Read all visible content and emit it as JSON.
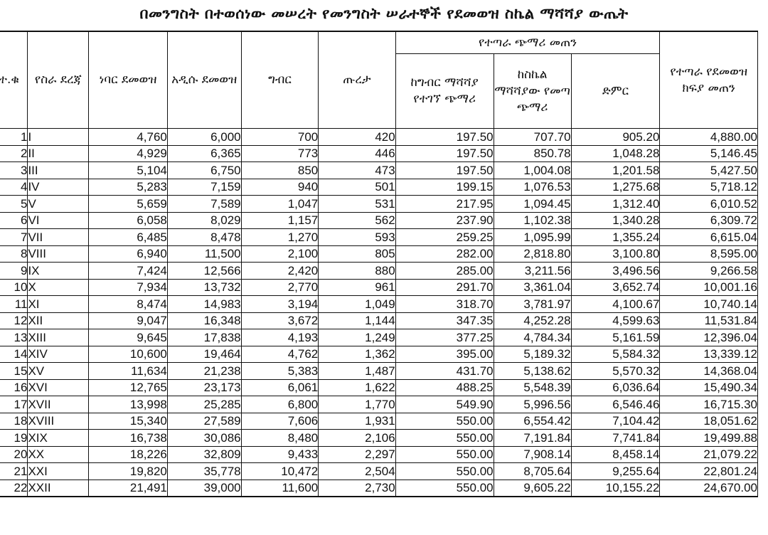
{
  "title": "በመንግስት በተወሰነው መሠረት የመንግስት ሠራተኞች የደመወዝ ስኬል ማሻሻያ ውጤት",
  "headers": {
    "no": "ተ.ቁ",
    "grade": "የስራ ደረጃ",
    "old_salary": "ነባር ደመወዝ",
    "new_salary": "አዲሱ ደመወዝ",
    "tax": "ግብር",
    "pension": "ጡረታ",
    "net_increase_group": "የተጣራ ጭማሪ መጠን",
    "tax_adjusted_increase": "ከግብር ማሻሻያ የተገኘ ጭማሪ",
    "scale_adjusted_increase": "ከስኬል ማሻሻያው የመጣ ጭማሪ",
    "total": "ድምር",
    "net_salary_payment": "የተጣራ የደመወዝ ክፍያ መጠን"
  },
  "rows": [
    {
      "no": "1",
      "grade": "I",
      "old": "4,760",
      "new": "6,000",
      "tax": "700",
      "pension": "420",
      "tax_inc": "197.50",
      "scale_inc": "707.70",
      "total": "905.20",
      "net": "4,880.00"
    },
    {
      "no": "2",
      "grade": "II",
      "old": "4,929",
      "new": "6,365",
      "tax": "773",
      "pension": "446",
      "tax_inc": "197.50",
      "scale_inc": "850.78",
      "total": "1,048.28",
      "net": "5,146.45"
    },
    {
      "no": "3",
      "grade": "III",
      "old": "5,104",
      "new": "6,750",
      "tax": "850",
      "pension": "473",
      "tax_inc": "197.50",
      "scale_inc": "1,004.08",
      "total": "1,201.58",
      "net": "5,427.50"
    },
    {
      "no": "4",
      "grade": "IV",
      "old": "5,283",
      "new": "7,159",
      "tax": "940",
      "pension": "501",
      "tax_inc": "199.15",
      "scale_inc": "1,076.53",
      "total": "1,275.68",
      "net": "5,718.12"
    },
    {
      "no": "5",
      "grade": "V",
      "old": "5,659",
      "new": "7,589",
      "tax": "1,047",
      "pension": "531",
      "tax_inc": "217.95",
      "scale_inc": "1,094.45",
      "total": "1,312.40",
      "net": "6,010.52"
    },
    {
      "no": "6",
      "grade": "VI",
      "old": "6,058",
      "new": "8,029",
      "tax": "1,157",
      "pension": "562",
      "tax_inc": "237.90",
      "scale_inc": "1,102.38",
      "total": "1,340.28",
      "net": "6,309.72"
    },
    {
      "no": "7",
      "grade": "VII",
      "old": "6,485",
      "new": "8,478",
      "tax": "1,270",
      "pension": "593",
      "tax_inc": "259.25",
      "scale_inc": "1,095.99",
      "total": "1,355.24",
      "net": "6,615.04"
    },
    {
      "no": "8",
      "grade": "VIII",
      "old": "6,940",
      "new": "11,500",
      "tax": "2,100",
      "pension": "805",
      "tax_inc": "282.00",
      "scale_inc": "2,818.80",
      "total": "3,100.80",
      "net": "8,595.00"
    },
    {
      "no": "9",
      "grade": "IX",
      "old": "7,424",
      "new": "12,566",
      "tax": "2,420",
      "pension": "880",
      "tax_inc": "285.00",
      "scale_inc": "3,211.56",
      "total": "3,496.56",
      "net": "9,266.58"
    },
    {
      "no": "10",
      "grade": "X",
      "old": "7,934",
      "new": "13,732",
      "tax": "2,770",
      "pension": "961",
      "tax_inc": "291.70",
      "scale_inc": "3,361.04",
      "total": "3,652.74",
      "net": "10,001.16"
    },
    {
      "no": "11",
      "grade": "XI",
      "old": "8,474",
      "new": "14,983",
      "tax": "3,194",
      "pension": "1,049",
      "tax_inc": "318.70",
      "scale_inc": "3,781.97",
      "total": "4,100.67",
      "net": "10,740.14"
    },
    {
      "no": "12",
      "grade": "XII",
      "old": "9,047",
      "new": "16,348",
      "tax": "3,672",
      "pension": "1,144",
      "tax_inc": "347.35",
      "scale_inc": "4,252.28",
      "total": "4,599.63",
      "net": "11,531.84"
    },
    {
      "no": "13",
      "grade": "XIII",
      "old": "9,645",
      "new": "17,838",
      "tax": "4,193",
      "pension": "1,249",
      "tax_inc": "377.25",
      "scale_inc": "4,784.34",
      "total": "5,161.59",
      "net": "12,396.04"
    },
    {
      "no": "14",
      "grade": "XIV",
      "old": "10,600",
      "new": "19,464",
      "tax": "4,762",
      "pension": "1,362",
      "tax_inc": "395.00",
      "scale_inc": "5,189.32",
      "total": "5,584.32",
      "net": "13,339.12"
    },
    {
      "no": "15",
      "grade": "XV",
      "old": "11,634",
      "new": "21,238",
      "tax": "5,383",
      "pension": "1,487",
      "tax_inc": "431.70",
      "scale_inc": "5,138.62",
      "total": "5,570.32",
      "net": "14,368.04"
    },
    {
      "no": "16",
      "grade": "XVI",
      "old": "12,765",
      "new": "23,173",
      "tax": "6,061",
      "pension": "1,622",
      "tax_inc": "488.25",
      "scale_inc": "5,548.39",
      "total": "6,036.64",
      "net": "15,490.34"
    },
    {
      "no": "17",
      "grade": "XVII",
      "old": "13,998",
      "new": "25,285",
      "tax": "6,800",
      "pension": "1,770",
      "tax_inc": "549.90",
      "scale_inc": "5,996.56",
      "total": "6,546.46",
      "net": "16,715.30"
    },
    {
      "no": "18",
      "grade": "XVIII",
      "old": "15,340",
      "new": "27,589",
      "tax": "7,606",
      "pension": "1,931",
      "tax_inc": "550.00",
      "scale_inc": "6,554.42",
      "total": "7,104.42",
      "net": "18,051.62"
    },
    {
      "no": "19",
      "grade": "XIX",
      "old": "16,738",
      "new": "30,086",
      "tax": "8,480",
      "pension": "2,106",
      "tax_inc": "550.00",
      "scale_inc": "7,191.84",
      "total": "7,741.84",
      "net": "19,499.88"
    },
    {
      "no": "20",
      "grade": "XX",
      "old": "18,226",
      "new": "32,809",
      "tax": "9,433",
      "pension": "2,297",
      "tax_inc": "550.00",
      "scale_inc": "7,908.14",
      "total": "8,458.14",
      "net": "21,079.22"
    },
    {
      "no": "21",
      "grade": "XXI",
      "old": "19,820",
      "new": "35,778",
      "tax": "10,472",
      "pension": "2,504",
      "tax_inc": "550.00",
      "scale_inc": "8,705.64",
      "total": "9,255.64",
      "net": "22,801.24"
    },
    {
      "no": "22",
      "grade": "XXII",
      "old": "21,491",
      "new": "39,000",
      "tax": "11,600",
      "pension": "2,730",
      "tax_inc": "550.00",
      "scale_inc": "9,605.22",
      "total": "10,155.22",
      "net": "24,670.00"
    }
  ]
}
